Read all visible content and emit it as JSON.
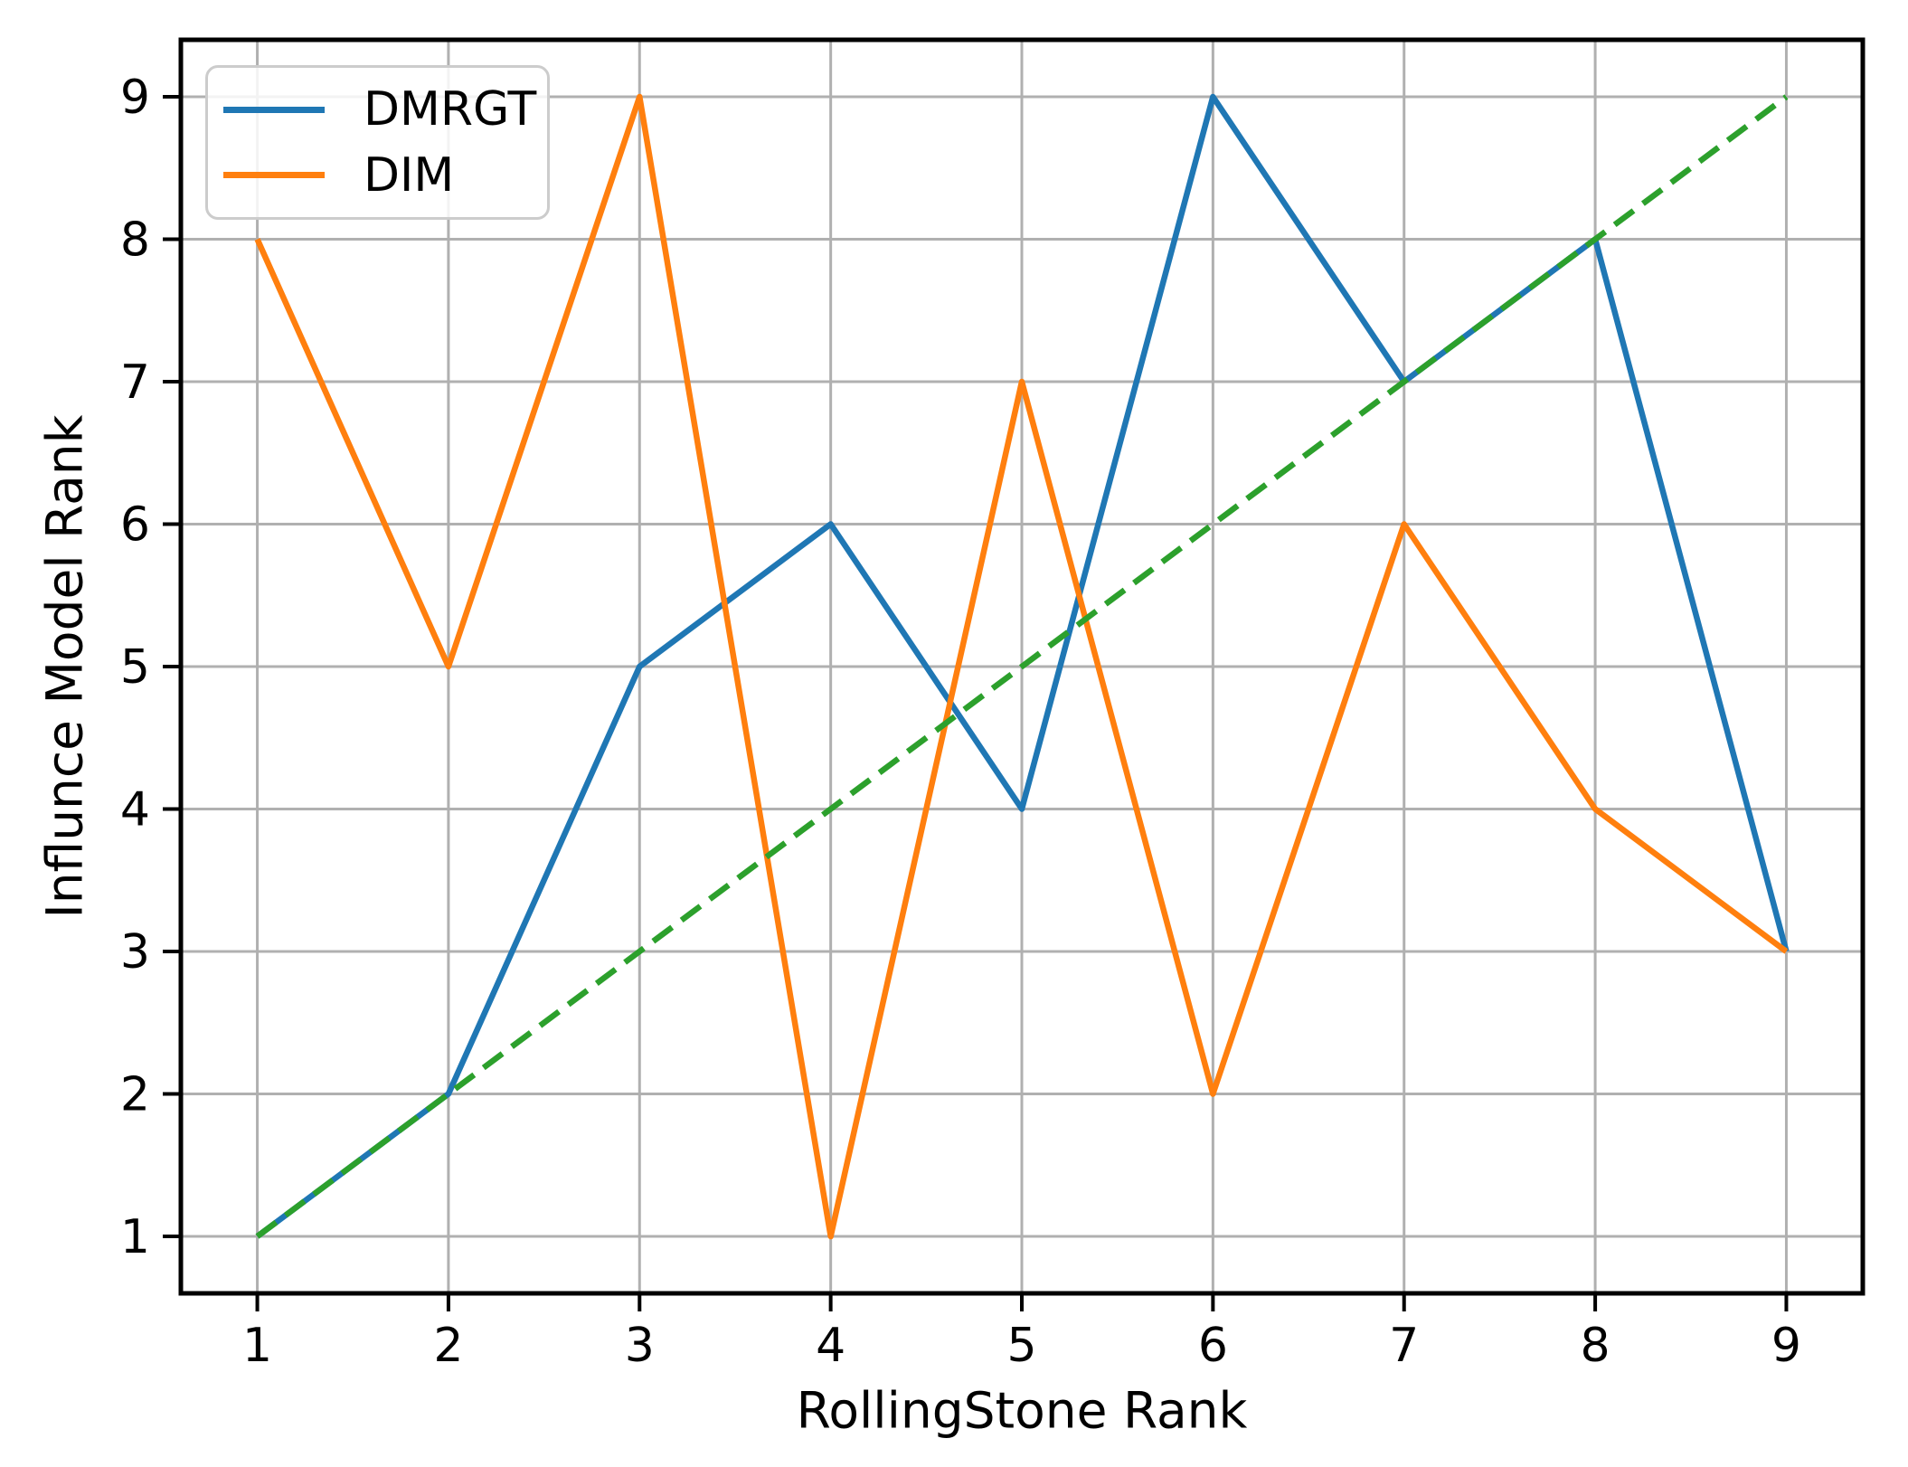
{
  "chart_data": {
    "type": "line",
    "title": "",
    "xlabel": "RollingStone Rank",
    "ylabel": "Influnce Model Rank",
    "x": [
      1,
      2,
      3,
      4,
      5,
      6,
      7,
      8,
      9
    ],
    "series": [
      {
        "name": "DMRGT",
        "color": "#1f77b4",
        "style": "solid",
        "values": [
          1,
          2,
          5,
          6,
          4,
          9,
          7,
          8,
          3
        ]
      },
      {
        "name": "DIM",
        "color": "#ff7f0e",
        "style": "solid",
        "values": [
          8,
          5,
          9,
          1,
          7,
          2,
          6,
          4,
          3
        ]
      }
    ],
    "reference_line": {
      "name": "diagonal-y-equals-x",
      "color": "#2ca02c",
      "style": "dashed",
      "x": [
        1,
        9
      ],
      "y": [
        1,
        9
      ]
    },
    "xlim": [
      0.6,
      9.4
    ],
    "ylim": [
      0.6,
      9.4
    ],
    "x_ticks": [
      "1",
      "2",
      "3",
      "4",
      "5",
      "6",
      "7",
      "8",
      "9"
    ],
    "y_ticks": [
      "1",
      "2",
      "3",
      "4",
      "5",
      "6",
      "7",
      "8",
      "9"
    ],
    "grid": true,
    "grid_color": "#b0b0b0",
    "axis_color": "#000000",
    "legend": {
      "position": "upper-left",
      "entries": [
        "DMRGT",
        "DIM"
      ]
    }
  }
}
